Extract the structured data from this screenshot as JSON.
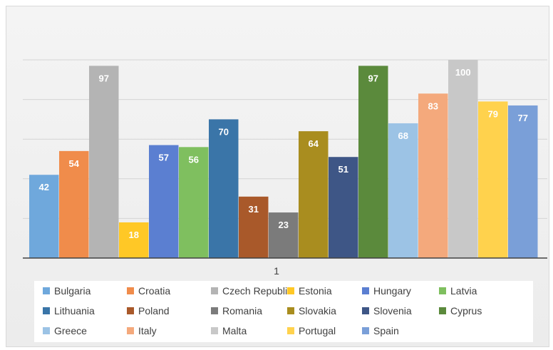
{
  "chart_data": {
    "type": "bar",
    "categories": [
      "1"
    ],
    "ylim": [
      0,
      100
    ],
    "grid": true,
    "legend_placement": "bottom",
    "series": [
      {
        "name": "Bulgaria",
        "values": [
          42
        ],
        "color": "#6fa8dc"
      },
      {
        "name": "Croatia",
        "values": [
          54
        ],
        "color": "#f08c4b"
      },
      {
        "name": "Czech Republic",
        "values": [
          97
        ],
        "color": "#b4b4b4"
      },
      {
        "name": "Estonia",
        "values": [
          18
        ],
        "color": "#ffc826"
      },
      {
        "name": "Hungary",
        "values": [
          57
        ],
        "color": "#5b7fd1"
      },
      {
        "name": "Latvia",
        "values": [
          56
        ],
        "color": "#7fbf5f"
      },
      {
        "name": "Lithuania",
        "values": [
          70
        ],
        "color": "#3a75a8"
      },
      {
        "name": "Poland",
        "values": [
          31
        ],
        "color": "#a9592a"
      },
      {
        "name": "Romania",
        "values": [
          23
        ],
        "color": "#7b7b7b"
      },
      {
        "name": "Slovakia",
        "values": [
          64
        ],
        "color": "#a98d1f"
      },
      {
        "name": "Slovenia",
        "values": [
          51
        ],
        "color": "#3e5686"
      },
      {
        "name": "Cyprus",
        "values": [
          97
        ],
        "color": "#5b8a3c"
      },
      {
        "name": "Greece",
        "values": [
          68
        ],
        "color": "#9cc3e5"
      },
      {
        "name": "Italy",
        "values": [
          83
        ],
        "color": "#f4a97c"
      },
      {
        "name": "Malta",
        "values": [
          100
        ],
        "color": "#c8c8c8"
      },
      {
        "name": "Portugal",
        "values": [
          79
        ],
        "color": "#ffd24d"
      },
      {
        "name": "Spain",
        "values": [
          77
        ],
        "color": "#7a9fd8"
      }
    ]
  }
}
